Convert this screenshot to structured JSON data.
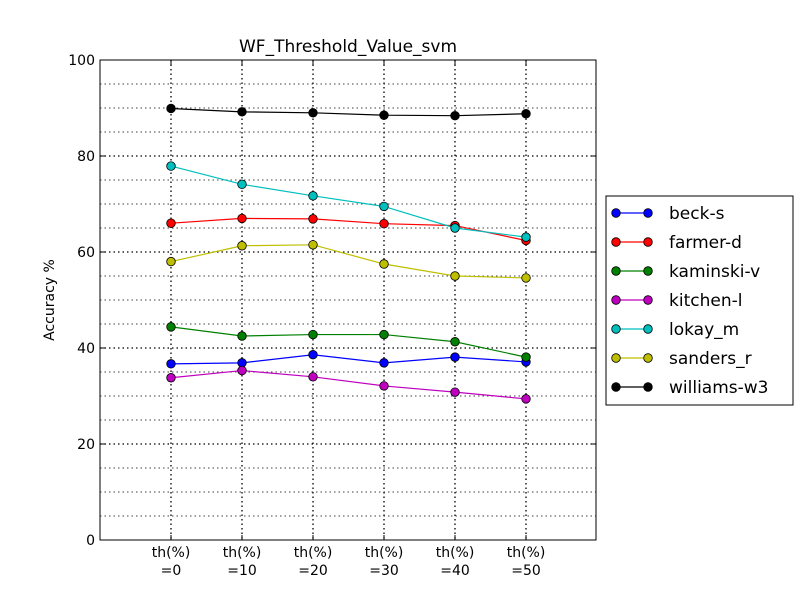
{
  "chart_data": {
    "type": "line",
    "title": "WF_Threshold_Value_svm",
    "xlabel": "",
    "ylabel": "Accuracy %",
    "ylim": [
      0,
      100
    ],
    "y_ticks": [
      0,
      20,
      40,
      60,
      80,
      100
    ],
    "categories": [
      [
        "th(%)",
        "=0"
      ],
      [
        "th(%)",
        "=10"
      ],
      [
        "th(%)",
        "=20"
      ],
      [
        "th(%)",
        "=30"
      ],
      [
        "th(%)",
        "=40"
      ],
      [
        "th(%)",
        "=50"
      ]
    ],
    "grid": true,
    "legend_position": "right",
    "series": [
      {
        "name": "beck-s",
        "color": "#0000ff",
        "values": [
          36.7,
          36.9,
          38.6,
          36.9,
          38.1,
          37.1
        ]
      },
      {
        "name": "farmer-d",
        "color": "#ff0000",
        "values": [
          66.0,
          67.0,
          66.9,
          65.9,
          65.5,
          62.4
        ]
      },
      {
        "name": "kaminski-v",
        "color": "#008000",
        "values": [
          44.4,
          42.5,
          42.8,
          42.8,
          41.3,
          38.1
        ]
      },
      {
        "name": "kitchen-l",
        "color": "#bf00bf",
        "values": [
          33.8,
          35.3,
          34.0,
          32.1,
          30.8,
          29.4
        ]
      },
      {
        "name": "lokay_m",
        "color": "#00bfbf",
        "values": [
          77.9,
          74.1,
          71.7,
          69.5,
          65.0,
          63.1
        ]
      },
      {
        "name": "sanders_r",
        "color": "#bfbf00",
        "values": [
          58.0,
          61.3,
          61.5,
          57.5,
          55.0,
          54.6
        ]
      },
      {
        "name": "williams-w3",
        "color": "#000000",
        "values": [
          89.9,
          89.2,
          89.0,
          88.5,
          88.4,
          88.8
        ]
      }
    ]
  }
}
